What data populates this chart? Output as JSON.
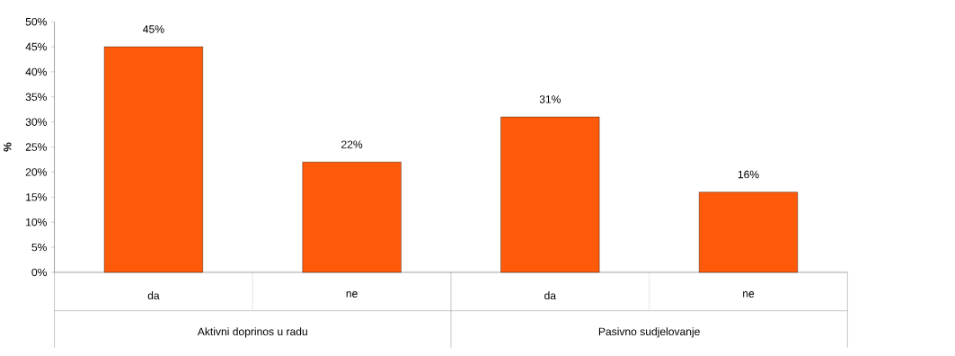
{
  "chart_data": {
    "type": "bar",
    "ylabel": "%",
    "categories": [
      "da",
      "ne",
      "da",
      "ne"
    ],
    "values": [
      45,
      22,
      31,
      16
    ],
    "value_labels": [
      "45%",
      "22%",
      "31%",
      "16%"
    ],
    "color": "#ff5a0a",
    "ylim": [
      0,
      50
    ],
    "yticks": [
      {
        "value": 0,
        "label": "0%"
      },
      {
        "value": 5,
        "label": "5%"
      },
      {
        "value": 10,
        "label": "10%"
      },
      {
        "value": 15,
        "label": "15%"
      },
      {
        "value": 20,
        "label": "20%"
      },
      {
        "value": 25,
        "label": "25%"
      },
      {
        "value": 30,
        "label": "30%"
      },
      {
        "value": 35,
        "label": "35%"
      },
      {
        "value": 40,
        "label": "40%"
      },
      {
        "value": 45,
        "label": "45%"
      },
      {
        "value": 50,
        "label": "50%"
      }
    ],
    "annotations": [
      "Aktivni doprinos u radu",
      "Pasivno sudjelovanje"
    ],
    "grid": false
  }
}
